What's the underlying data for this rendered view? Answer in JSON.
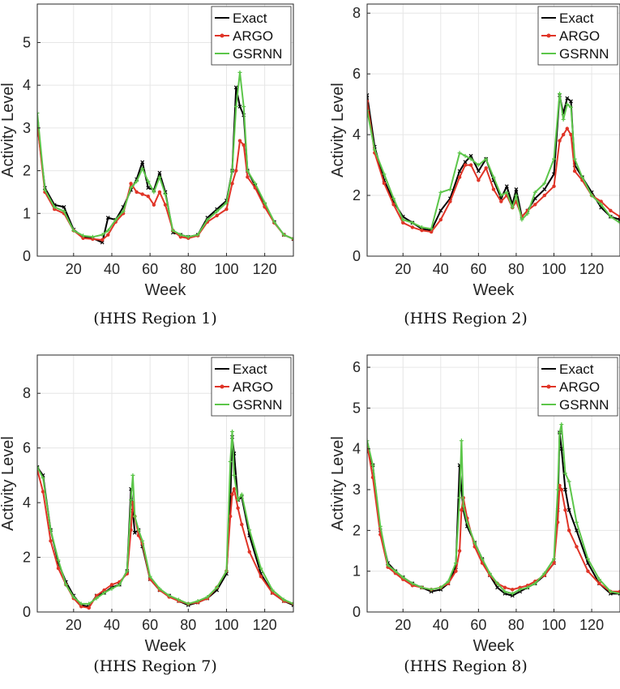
{
  "chart_data": [
    {
      "type": "line",
      "caption": "(HHS Region 1)",
      "xlabel": "Week",
      "ylabel": "Activity Level",
      "xlim": [
        1,
        135
      ],
      "ylim": [
        0,
        5.9
      ],
      "xticks": [
        20,
        40,
        60,
        80,
        100,
        120
      ],
      "yticks": [
        0,
        1,
        2,
        3,
        4,
        5
      ],
      "grid": true,
      "legend_position": "top-right",
      "x": [
        1,
        5,
        10,
        15,
        20,
        25,
        30,
        35,
        38,
        42,
        46,
        50,
        53,
        56,
        59,
        62,
        65,
        68,
        72,
        76,
        80,
        85,
        90,
        95,
        100,
        103,
        105,
        107,
        109,
        111,
        115,
        120,
        125,
        130,
        135
      ],
      "series": [
        {
          "name": "Exact",
          "color": "#000000",
          "values": [
            3.1,
            1.6,
            1.2,
            1.15,
            0.62,
            0.45,
            0.42,
            0.32,
            0.9,
            0.85,
            1.15,
            1.55,
            1.8,
            2.2,
            1.6,
            1.55,
            1.95,
            1.5,
            0.55,
            0.5,
            0.45,
            0.5,
            0.9,
            1.1,
            1.3,
            2.0,
            3.95,
            3.5,
            3.3,
            2.0,
            1.65,
            1.2,
            0.8,
            0.5,
            0.4
          ]
        },
        {
          "name": "ARGO",
          "color": "#e03427",
          "values": [
            3.1,
            1.5,
            1.1,
            1.0,
            0.6,
            0.42,
            0.4,
            0.38,
            0.5,
            0.8,
            1.0,
            1.7,
            1.5,
            1.45,
            1.4,
            1.2,
            1.5,
            1.2,
            0.6,
            0.45,
            0.42,
            0.48,
            0.8,
            0.95,
            1.1,
            1.7,
            2.0,
            2.7,
            2.6,
            1.85,
            1.6,
            1.15,
            0.78,
            0.5,
            0.4
          ]
        },
        {
          "name": "GSRNN",
          "color": "#5cc64a",
          "values": [
            3.35,
            1.55,
            1.15,
            1.05,
            0.6,
            0.48,
            0.45,
            0.5,
            0.6,
            0.85,
            1.05,
            1.6,
            1.75,
            2.05,
            1.75,
            1.5,
            1.85,
            1.45,
            0.6,
            0.5,
            0.45,
            0.5,
            0.85,
            1.05,
            1.25,
            2.0,
            3.5,
            4.3,
            3.5,
            2.0,
            1.7,
            1.25,
            0.8,
            0.5,
            0.4
          ]
        }
      ]
    },
    {
      "type": "line",
      "caption": "(HHS Region 2)",
      "xlabel": "Week",
      "ylabel": "Activity Level",
      "xlim": [
        1,
        135
      ],
      "ylim": [
        0,
        8.3
      ],
      "xticks": [
        20,
        40,
        60,
        80,
        100,
        120
      ],
      "yticks": [
        0,
        2,
        4,
        6,
        8
      ],
      "grid": true,
      "legend_position": "top-right",
      "x": [
        1,
        5,
        10,
        15,
        20,
        25,
        30,
        35,
        40,
        45,
        50,
        53,
        56,
        60,
        64,
        68,
        72,
        75,
        78,
        80,
        83,
        86,
        90,
        95,
        100,
        103,
        105,
        107,
        109,
        111,
        115,
        120,
        125,
        130,
        135
      ],
      "series": [
        {
          "name": "Exact",
          "color": "#000000",
          "values": [
            5.3,
            3.6,
            2.5,
            1.8,
            1.3,
            1.1,
            0.9,
            0.85,
            1.5,
            1.9,
            2.8,
            3.1,
            3.3,
            2.8,
            3.2,
            2.5,
            1.9,
            2.3,
            1.7,
            2.2,
            1.3,
            1.5,
            1.9,
            2.2,
            2.7,
            5.3,
            4.7,
            5.2,
            5.1,
            3.0,
            2.6,
            2.1,
            1.6,
            1.3,
            1.2
          ]
        },
        {
          "name": "ARGO",
          "color": "#e03427",
          "values": [
            5.1,
            3.4,
            2.4,
            1.7,
            1.1,
            0.95,
            0.85,
            0.8,
            1.2,
            1.8,
            2.6,
            3.0,
            3.0,
            2.5,
            2.9,
            2.2,
            1.8,
            2.0,
            1.6,
            1.8,
            1.3,
            1.5,
            1.7,
            2.0,
            2.3,
            3.8,
            4.0,
            4.2,
            4.0,
            2.8,
            2.5,
            2.0,
            1.8,
            1.5,
            1.3
          ]
        },
        {
          "name": "GSRNN",
          "color": "#5cc64a",
          "values": [
            4.8,
            3.5,
            2.7,
            1.9,
            1.2,
            1.1,
            0.95,
            0.9,
            2.1,
            2.2,
            3.4,
            3.3,
            3.2,
            3.0,
            3.2,
            2.6,
            2.0,
            2.1,
            1.6,
            2.0,
            1.2,
            1.4,
            2.1,
            2.4,
            3.2,
            5.35,
            4.5,
            5.0,
            4.9,
            3.2,
            2.6,
            2.0,
            1.7,
            1.3,
            1.1
          ]
        }
      ]
    },
    {
      "type": "line",
      "caption": "(HHS Region 7)",
      "xlabel": "Week",
      "ylabel": "Activity Level",
      "xlim": [
        1,
        135
      ],
      "ylim": [
        0,
        9.4
      ],
      "xticks": [
        20,
        40,
        60,
        80,
        100,
        120
      ],
      "yticks": [
        0,
        2,
        4,
        6,
        8
      ],
      "grid": true,
      "legend_position": "top-right",
      "x": [
        1,
        4,
        8,
        12,
        16,
        20,
        24,
        28,
        32,
        36,
        40,
        44,
        48,
        50,
        51,
        52,
        54,
        56,
        60,
        65,
        70,
        75,
        80,
        85,
        90,
        95,
        100,
        102,
        103,
        104,
        106,
        108,
        112,
        118,
        124,
        130,
        135
      ],
      "series": [
        {
          "name": "Exact",
          "color": "#000000",
          "values": [
            5.3,
            5.0,
            3.0,
            1.8,
            1.1,
            0.6,
            0.25,
            0.2,
            0.6,
            0.7,
            0.9,
            1.0,
            1.5,
            4.5,
            3.7,
            2.9,
            3.0,
            2.4,
            1.2,
            0.8,
            0.6,
            0.4,
            0.25,
            0.35,
            0.5,
            0.8,
            1.4,
            4.0,
            6.4,
            5.8,
            4.1,
            4.2,
            2.8,
            1.4,
            0.7,
            0.4,
            0.25
          ]
        },
        {
          "name": "ARGO",
          "color": "#e03427",
          "values": [
            5.2,
            4.4,
            2.6,
            1.6,
            1.0,
            0.5,
            0.2,
            0.15,
            0.6,
            0.8,
            1.0,
            1.1,
            1.4,
            3.0,
            4.0,
            3.5,
            2.8,
            2.5,
            1.2,
            0.8,
            0.55,
            0.4,
            0.3,
            0.35,
            0.5,
            0.9,
            1.5,
            3.5,
            4.3,
            4.5,
            3.8,
            3.2,
            2.2,
            1.3,
            0.7,
            0.4,
            0.3
          ]
        },
        {
          "name": "GSRNN",
          "color": "#5cc64a",
          "values": [
            5.3,
            4.9,
            3.0,
            1.9,
            1.0,
            0.55,
            0.3,
            0.3,
            0.5,
            0.7,
            0.85,
            1.0,
            1.5,
            4.1,
            5.0,
            3.5,
            3.0,
            2.6,
            1.3,
            0.85,
            0.6,
            0.45,
            0.3,
            0.4,
            0.55,
            0.9,
            1.5,
            5.5,
            6.6,
            5.0,
            4.1,
            4.3,
            3.0,
            1.6,
            0.8,
            0.45,
            0.3
          ]
        }
      ]
    },
    {
      "type": "line",
      "caption": "(HHS Region 8)",
      "xlabel": "Week",
      "ylabel": "Activity Level",
      "xlim": [
        1,
        135
      ],
      "ylim": [
        0,
        6.3
      ],
      "xticks": [
        20,
        40,
        60,
        80,
        100,
        120
      ],
      "yticks": [
        0,
        1,
        2,
        3,
        4,
        5,
        6
      ],
      "grid": true,
      "legend_position": "top-right",
      "x": [
        1,
        4,
        8,
        12,
        16,
        20,
        25,
        30,
        35,
        40,
        44,
        48,
        50,
        51,
        52,
        54,
        58,
        62,
        66,
        70,
        74,
        78,
        82,
        86,
        90,
        95,
        100,
        102,
        103,
        104,
        106,
        108,
        112,
        118,
        124,
        130,
        135
      ],
      "series": [
        {
          "name": "Exact",
          "color": "#000000",
          "values": [
            4.0,
            3.6,
            2.0,
            1.2,
            1.0,
            0.85,
            0.7,
            0.6,
            0.5,
            0.55,
            0.7,
            1.1,
            3.6,
            3.0,
            2.5,
            2.1,
            1.7,
            1.3,
            0.9,
            0.6,
            0.45,
            0.4,
            0.5,
            0.6,
            0.7,
            0.9,
            1.2,
            2.5,
            4.4,
            4.0,
            3.0,
            2.5,
            2.0,
            1.2,
            0.7,
            0.45,
            0.45
          ]
        },
        {
          "name": "ARGO",
          "color": "#e03427",
          "values": [
            4.1,
            3.3,
            1.9,
            1.1,
            0.95,
            0.8,
            0.65,
            0.6,
            0.55,
            0.6,
            0.7,
            1.0,
            1.5,
            2.5,
            2.8,
            2.3,
            1.6,
            1.2,
            0.9,
            0.7,
            0.6,
            0.55,
            0.6,
            0.65,
            0.75,
            0.9,
            1.2,
            2.2,
            3.1,
            3.0,
            2.5,
            2.0,
            1.6,
            1.0,
            0.7,
            0.5,
            0.5
          ]
        },
        {
          "name": "GSRNN",
          "color": "#5cc64a",
          "values": [
            4.2,
            3.6,
            2.1,
            1.15,
            1.0,
            0.85,
            0.7,
            0.6,
            0.55,
            0.6,
            0.75,
            1.2,
            2.8,
            4.2,
            2.6,
            2.2,
            1.7,
            1.3,
            0.95,
            0.7,
            0.5,
            0.45,
            0.55,
            0.6,
            0.7,
            0.95,
            1.3,
            3.0,
            4.4,
            4.6,
            3.4,
            3.2,
            2.2,
            1.3,
            0.8,
            0.5,
            0.45
          ]
        }
      ]
    }
  ]
}
